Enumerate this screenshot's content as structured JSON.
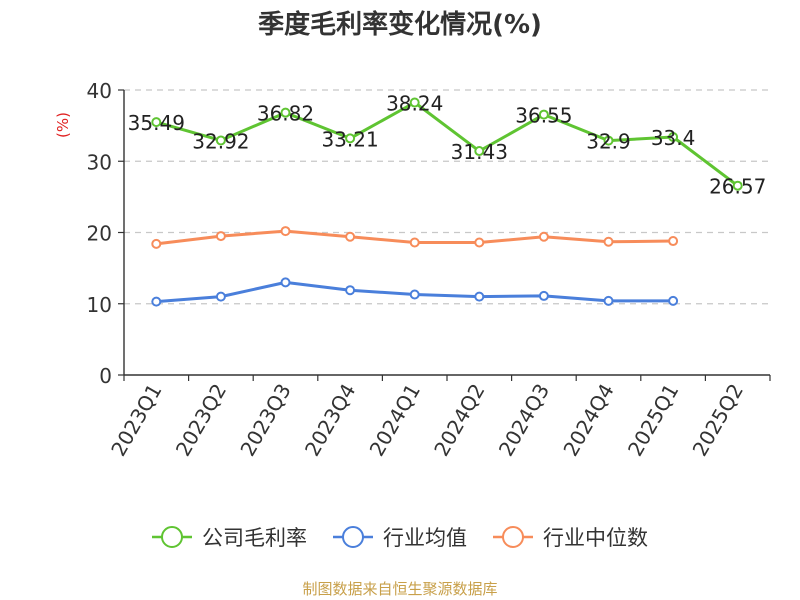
{
  "chart_data": {
    "type": "line",
    "title": "季度毛利率变化情况(%)",
    "ylabel": "(%)",
    "xlabel": "",
    "categories": [
      "2023Q1",
      "2023Q2",
      "2023Q3",
      "2023Q4",
      "2024Q1",
      "2024Q2",
      "2024Q3",
      "2024Q4",
      "2025Q1",
      "2025Q2"
    ],
    "yticks": [
      0,
      10,
      20,
      30,
      40
    ],
    "ylim": [
      0,
      40
    ],
    "grid": true,
    "legend_position": "bottom",
    "series": [
      {
        "name": "公司毛利率",
        "color": "#5fc432",
        "show_labels": true,
        "values": [
          35.49,
          32.92,
          36.82,
          33.21,
          38.24,
          31.43,
          36.55,
          32.9,
          33.4,
          26.57
        ]
      },
      {
        "name": "行业均值",
        "color": "#4a7fdb",
        "show_labels": false,
        "values": [
          10.3,
          11.0,
          13.0,
          11.9,
          11.3,
          11.0,
          11.1,
          10.4,
          10.4,
          null
        ]
      },
      {
        "name": "行业中位数",
        "color": "#f78c5a",
        "show_labels": false,
        "values": [
          18.4,
          19.5,
          20.2,
          19.4,
          18.6,
          18.6,
          19.4,
          18.7,
          18.8,
          null
        ]
      }
    ]
  },
  "footer": {
    "source": "制图数据来自恒生聚源数据库"
  }
}
